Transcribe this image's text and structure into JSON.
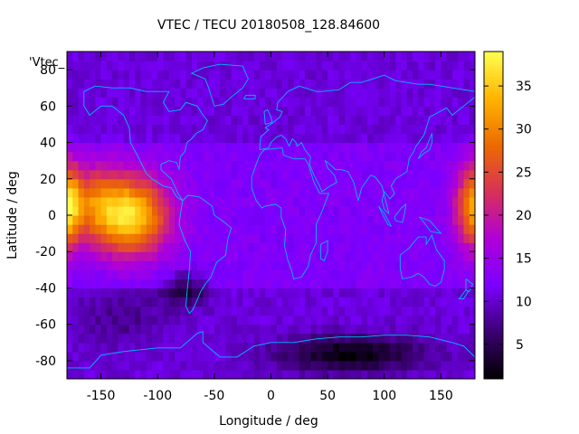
{
  "chart_data": {
    "type": "heatmap",
    "title": "VTEC / TECU 20180508_128.84600",
    "xlabel": "Longitude / deg",
    "ylabel": "Latitude / deg",
    "series_label": "'Vtec_",
    "xlim": [
      -180,
      180
    ],
    "ylim": [
      -90,
      90
    ],
    "x_ticks": [
      -150,
      -100,
      -50,
      0,
      50,
      100,
      150
    ],
    "y_ticks": [
      -80,
      -60,
      -40,
      -20,
      0,
      20,
      40,
      60,
      80
    ],
    "colorbar": {
      "range": [
        1,
        39
      ],
      "ticks": [
        5,
        10,
        15,
        20,
        25,
        30,
        35
      ],
      "palette": [
        "#000000",
        "#3a0070",
        "#7a00ff",
        "#b000d8",
        "#d8305a",
        "#ec6a00",
        "#ffb400",
        "#ffff50"
      ]
    },
    "grid": false,
    "features": {
      "max_region": {
        "lon_center": -120,
        "lat_center": 0,
        "peak_tecu": 35,
        "lon_extent": [
          -180,
          -75
        ],
        "lat_extent": [
          -25,
          30
        ]
      },
      "wrap_region": {
        "lon_center": 180,
        "lat_center": 5,
        "peak_tecu": 30
      },
      "min_region_south": {
        "lon_center": 70,
        "lat_center": -75,
        "min_tecu": 1
      },
      "min_region_se_pacific": {
        "lon_center": -80,
        "lat_center": -40,
        "min_tecu": 3
      },
      "background_tecu": 11
    },
    "overlay": "coastlines"
  },
  "colors": {
    "coastline": "#00b8ff",
    "background": "#ffffff"
  }
}
